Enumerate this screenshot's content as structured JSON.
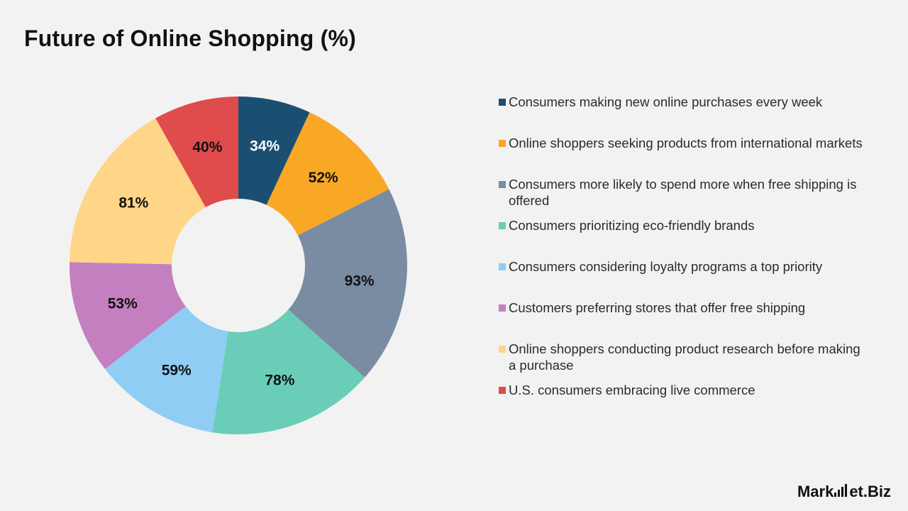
{
  "title": "Future of Online Shopping (%)",
  "brand": {
    "part1": "Mark",
    "part2": "et",
    "part3": ".Biz"
  },
  "chart_data": {
    "type": "pie",
    "variant": "donut",
    "title": "Future of Online Shopping (%)",
    "legend_position": "right",
    "series": [
      {
        "name": "Consumers making new online purchases every week",
        "value": 34,
        "label": "34%",
        "color": "#1b4f72",
        "label_color": "#ffffff"
      },
      {
        "name": "Online shoppers seeking products from international markets",
        "value": 52,
        "label": "52%",
        "color": "#f9a825",
        "label_color": "#111111"
      },
      {
        "name": "Consumers more likely to spend more when free shipping is offered",
        "value": 93,
        "label": "93%",
        "color": "#7a8ca2",
        "label_color": "#111111"
      },
      {
        "name": "Consumers prioritizing eco-friendly brands",
        "value": 78,
        "label": "78%",
        "color": "#69cdb8",
        "label_color": "#111111"
      },
      {
        "name": "Consumers considering loyalty programs a top priority",
        "value": 59,
        "label": "59%",
        "color": "#8fcdf4",
        "label_color": "#111111"
      },
      {
        "name": "Customers preferring stores that offer free shipping",
        "value": 53,
        "label": "53%",
        "color": "#c47fc0",
        "label_color": "#111111"
      },
      {
        "name": "Online shoppers conducting product research before making a purchase",
        "value": 81,
        "label": "81%",
        "color": "#ffd587",
        "label_color": "#111111"
      },
      {
        "name": "U.S. consumers embracing live commerce",
        "value": 40,
        "label": "40%",
        "color": "#e04b4b",
        "label_color": "#111111"
      }
    ]
  }
}
